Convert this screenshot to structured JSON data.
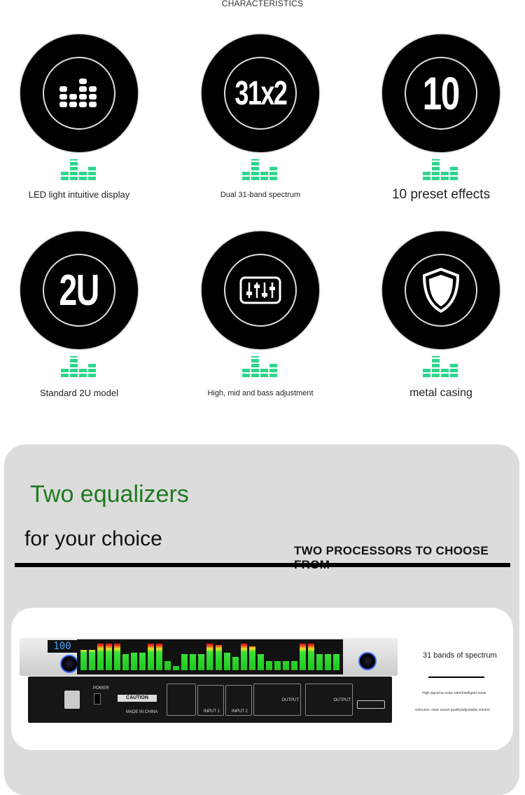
{
  "header": {
    "title": "CHARACTERISTICS"
  },
  "features": [
    {
      "label": "LED light intuitive display",
      "icon": "led-bars-icon"
    },
    {
      "label": "Dual 31-band spectrum",
      "icon_text": "31x2"
    },
    {
      "label": "10 preset effects",
      "icon_text": "10"
    },
    {
      "label": "Standard 2U model",
      "icon_text": "2U"
    },
    {
      "label": "High, mid and bass adjustment",
      "icon": "sliders-icon"
    },
    {
      "label": "metal casing",
      "icon": "shield-icon"
    }
  ],
  "section": {
    "title": "Two equalizers",
    "subtitle": "for your choice",
    "tagline": "TWO PROCESSORS TO CHOOSE FROM"
  },
  "product": {
    "display_value": "100",
    "caution": "CAUTION",
    "made_in": "MADE IN CHINA",
    "power": "POWER",
    "input1": "INPUT 1",
    "input2": "INPUT 2",
    "output": "OUTPUT",
    "spectrum_levels": [
      0.7,
      0.7,
      0.9,
      0.9,
      0.9,
      0.55,
      0.6,
      0.6,
      0.9,
      0.9,
      0.3,
      0.15,
      0.55,
      0.55,
      0.55,
      0.9,
      0.85,
      0.6,
      0.45,
      0.9,
      0.8,
      0.55,
      0.3,
      0.3,
      0.3,
      0.3,
      0.9,
      0.9,
      0.55,
      0.55,
      0.55
    ],
    "side_title": "31 bands of spectrum",
    "side_line1": "High signal-to-noise ratio/Intelligent noise",
    "side_line2": "reduction, clear sound quality/adjustable volume"
  },
  "colors": {
    "accent_green": "#2ed68c",
    "title_green": "#1e7a1e",
    "panel_grey": "#dcdcdc"
  }
}
